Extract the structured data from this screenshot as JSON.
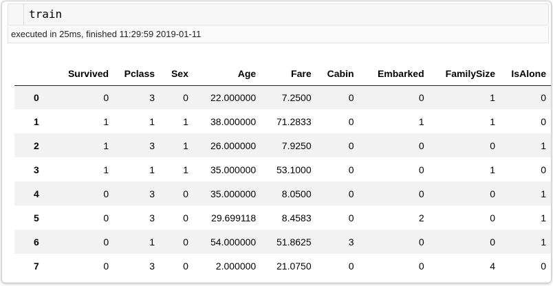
{
  "cell": {
    "code": "train",
    "execution_info": "executed in 25ms, finished 11:29:59 2019-01-11"
  },
  "table": {
    "columns": [
      "Survived",
      "Pclass",
      "Sex",
      "Age",
      "Fare",
      "Cabin",
      "Embarked",
      "FamilySize",
      "IsAlone"
    ],
    "rows": [
      {
        "index": "0",
        "values": [
          "0",
          "3",
          "0",
          "22.000000",
          "7.2500",
          "0",
          "0",
          "1",
          "0"
        ]
      },
      {
        "index": "1",
        "values": [
          "1",
          "1",
          "1",
          "38.000000",
          "71.2833",
          "0",
          "1",
          "1",
          "0"
        ]
      },
      {
        "index": "2",
        "values": [
          "1",
          "3",
          "1",
          "26.000000",
          "7.9250",
          "0",
          "0",
          "0",
          "1"
        ]
      },
      {
        "index": "3",
        "values": [
          "1",
          "1",
          "1",
          "35.000000",
          "53.1000",
          "0",
          "0",
          "1",
          "0"
        ]
      },
      {
        "index": "4",
        "values": [
          "0",
          "3",
          "0",
          "35.000000",
          "8.0500",
          "0",
          "0",
          "0",
          "1"
        ]
      },
      {
        "index": "5",
        "values": [
          "0",
          "3",
          "0",
          "29.699118",
          "8.4583",
          "0",
          "2",
          "0",
          "1"
        ]
      },
      {
        "index": "6",
        "values": [
          "0",
          "1",
          "0",
          "54.000000",
          "51.8625",
          "3",
          "0",
          "0",
          "1"
        ]
      },
      {
        "index": "7",
        "values": [
          "0",
          "3",
          "0",
          "2.000000",
          "21.0750",
          "0",
          "0",
          "4",
          "0"
        ]
      }
    ]
  }
}
